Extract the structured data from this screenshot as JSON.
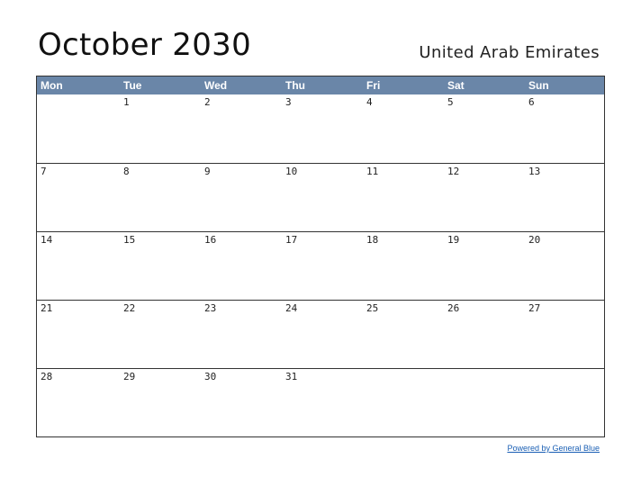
{
  "header": {
    "title": "October 2030",
    "country": "United Arab Emirates"
  },
  "weekdays": [
    "Mon",
    "Tue",
    "Wed",
    "Thu",
    "Fri",
    "Sat",
    "Sun"
  ],
  "weeks": [
    [
      "",
      "1",
      "2",
      "3",
      "4",
      "5",
      "6"
    ],
    [
      "7",
      "8",
      "9",
      "10",
      "11",
      "12",
      "13"
    ],
    [
      "14",
      "15",
      "16",
      "17",
      "18",
      "19",
      "20"
    ],
    [
      "21",
      "22",
      "23",
      "24",
      "25",
      "26",
      "27"
    ],
    [
      "28",
      "29",
      "30",
      "31",
      "",
      "",
      ""
    ]
  ],
  "footer": {
    "link": "Powered by General Blue"
  }
}
